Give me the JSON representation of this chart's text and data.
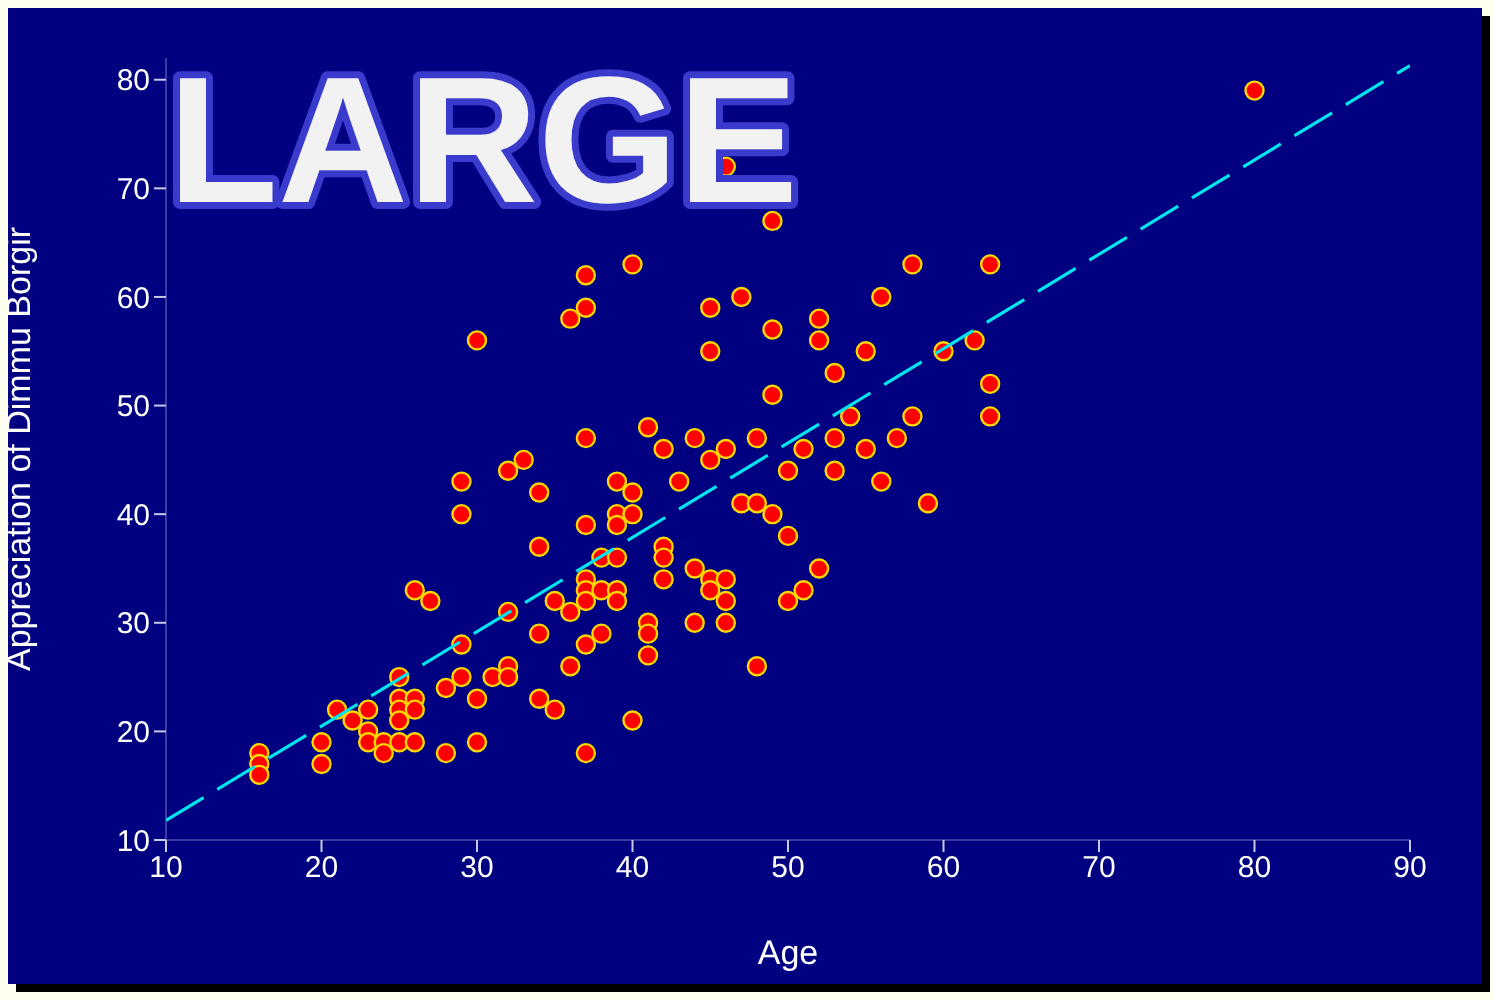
{
  "chart_data": {
    "type": "scatter",
    "title": "LARGE",
    "xlabel": "Age",
    "ylabel": "Appreciation of Dimmu Borgir",
    "xlim": [
      10,
      90
    ],
    "ylim": [
      10,
      82
    ],
    "xticks": [
      10,
      20,
      30,
      40,
      50,
      60,
      70,
      80,
      90
    ],
    "yticks": [
      10,
      20,
      30,
      40,
      50,
      60,
      70,
      80
    ],
    "grid": false,
    "legend": false,
    "marker": "circle",
    "series": [
      {
        "color": "#ff0000",
        "x": [
          16,
          16,
          16,
          20,
          20,
          21,
          22,
          23,
          23,
          23,
          24,
          24,
          25,
          25,
          25,
          25,
          25,
          26,
          26,
          26,
          26,
          27,
          28,
          28,
          29,
          29,
          29,
          29,
          30,
          30,
          30,
          31,
          32,
          32,
          32,
          32,
          33,
          34,
          34,
          34,
          34,
          35,
          35,
          36,
          36,
          36,
          37,
          37,
          37,
          37,
          37,
          37,
          37,
          37,
          37,
          38,
          38,
          38,
          39,
          39,
          39,
          39,
          39,
          39,
          40,
          40,
          40,
          40,
          41,
          41,
          41,
          41,
          42,
          42,
          42,
          42,
          43,
          44,
          44,
          44,
          45,
          45,
          45,
          45,
          45,
          46,
          46,
          46,
          46,
          46,
          47,
          47,
          48,
          48,
          48,
          49,
          49,
          49,
          49,
          50,
          50,
          50,
          51,
          51,
          52,
          52,
          52,
          53,
          53,
          53,
          54,
          55,
          55,
          56,
          56,
          57,
          58,
          58,
          59,
          60,
          62,
          63,
          63,
          63,
          80
        ],
        "values": [
          18,
          17,
          16,
          19,
          17,
          22,
          21,
          22,
          20,
          19,
          19,
          18,
          25,
          23,
          22,
          21,
          19,
          23,
          22,
          19,
          33,
          32,
          24,
          18,
          43,
          40,
          28,
          25,
          56,
          23,
          19,
          25,
          44,
          31,
          26,
          25,
          45,
          42,
          37,
          29,
          23,
          32,
          22,
          58,
          31,
          26,
          62,
          59,
          47,
          39,
          34,
          33,
          32,
          28,
          18,
          36,
          33,
          29,
          43,
          40,
          39,
          36,
          33,
          32,
          63,
          42,
          40,
          21,
          48,
          30,
          29,
          27,
          46,
          37,
          36,
          34,
          43,
          47,
          35,
          30,
          59,
          55,
          45,
          34,
          33,
          72,
          46,
          34,
          32,
          30,
          60,
          41,
          47,
          41,
          26,
          67,
          57,
          51,
          40,
          44,
          38,
          32,
          46,
          33,
          58,
          56,
          35,
          53,
          47,
          44,
          49,
          55,
          46,
          60,
          43,
          47,
          63,
          49,
          41,
          55,
          56,
          63,
          52,
          49,
          79
        ]
      },
      {
        "type": "line",
        "color": "#00e5ee",
        "line_style": "dashed",
        "marker": "none",
        "x": [
          10,
          90
        ],
        "values": [
          11.8,
          81.3
        ]
      }
    ]
  }
}
